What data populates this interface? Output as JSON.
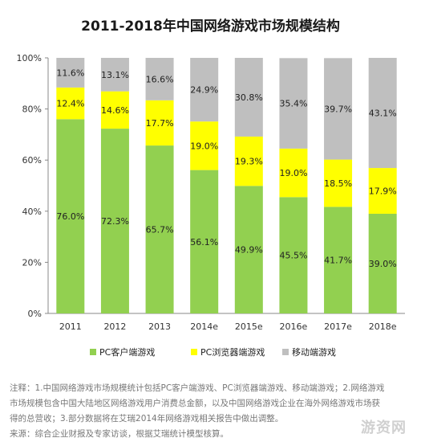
{
  "chart_data": {
    "type": "bar",
    "stacked": true,
    "percent_stacked": true,
    "title": "2011-2018年中国网络游戏市场规模结构",
    "categories": [
      "2011",
      "2012",
      "2013",
      "2014e",
      "2015e",
      "2016e",
      "2017e",
      "2018e"
    ],
    "series": [
      {
        "name": "PC客户端游戏",
        "color": "#92d050",
        "values": [
          76.0,
          72.3,
          65.7,
          56.1,
          49.9,
          45.5,
          41.7,
          39.0
        ]
      },
      {
        "name": "PC浏览器端游戏",
        "color": "#ffff00",
        "values": [
          12.4,
          14.6,
          17.7,
          19.0,
          19.3,
          19.0,
          18.5,
          17.9
        ]
      },
      {
        "name": "移动端游戏",
        "color": "#bfbfbf",
        "values": [
          11.6,
          13.1,
          16.6,
          24.9,
          30.8,
          35.4,
          39.7,
          43.1
        ]
      }
    ],
    "y_ticks": [
      "0%",
      "20%",
      "40%",
      "60%",
      "80%",
      "100%"
    ],
    "ylim": [
      0,
      100
    ],
    "legend_position": "bottom",
    "grid": false
  },
  "notes": {
    "line1": "注释：1.中国网络游戏市场规模统计包括PC客户端游戏、PC浏览器端游戏、移动端游戏；2.网络游戏",
    "line2": "市场规模包含中国大陆地区网络游戏用户消费总金额，以及中国网络游戏企业在海外网络游戏市场获",
    "line3": "得的总营收；3.部分数据将在艾瑞2014年网络游戏相关报告中做出调整。",
    "line4": "来源：综合企业财报及专家访谈，根据艾瑞统计模型核算。"
  },
  "watermark": "游资网"
}
